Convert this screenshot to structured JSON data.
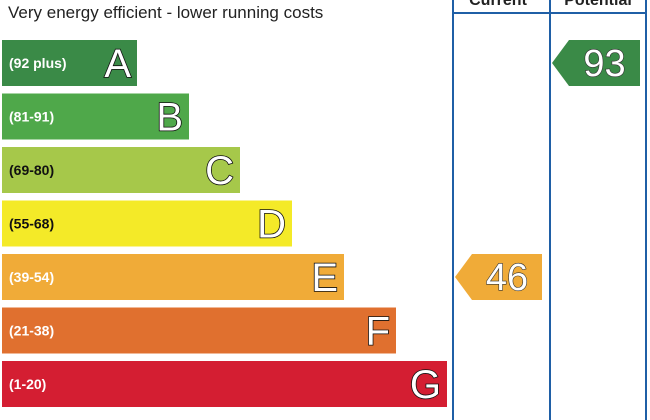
{
  "heading": "Very energy efficient - lower running costs",
  "columns": {
    "current": "Current",
    "potential": "Potential"
  },
  "colors": {
    "frame": "#1f5fa6",
    "A": "#3a8a47",
    "B": "#4fa84a",
    "C": "#a6c84a",
    "D": "#f4ea28",
    "E": "#f0ab38",
    "F": "#e0702f",
    "G": "#d41e32"
  },
  "chart_data": {
    "type": "bar",
    "bands": [
      {
        "letter": "A",
        "range": "(92 plus)"
      },
      {
        "letter": "B",
        "range": "(81-91)"
      },
      {
        "letter": "C",
        "range": "(69-80)"
      },
      {
        "letter": "D",
        "range": "(55-68)"
      },
      {
        "letter": "E",
        "range": "(39-54)"
      },
      {
        "letter": "F",
        "range": "(21-38)"
      },
      {
        "letter": "G",
        "range": "(1-20)"
      }
    ],
    "current": {
      "value": 46,
      "band": "E",
      "label": "46"
    },
    "potential": {
      "value": 93,
      "band": "A",
      "label": "93"
    }
  }
}
